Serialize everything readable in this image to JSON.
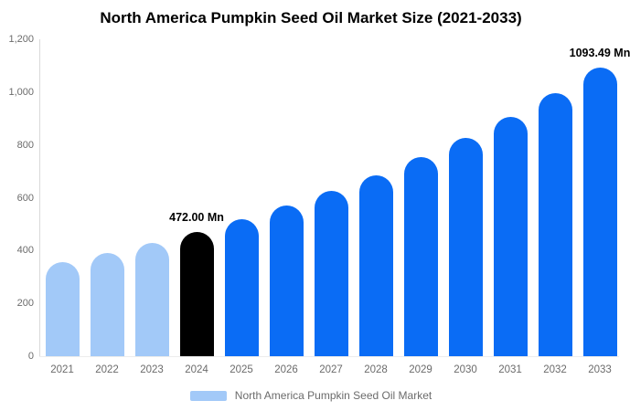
{
  "chart_data": {
    "type": "bar",
    "title": "North America Pumpkin Seed Oil Market Size (2021-2033)",
    "unit": "Mn",
    "categories": [
      "2021",
      "2022",
      "2023",
      "2024",
      "2025",
      "2026",
      "2027",
      "2028",
      "2029",
      "2030",
      "2031",
      "2032",
      "2033"
    ],
    "values": [
      356.7,
      391.6,
      429.9,
      472.0,
      518.2,
      568.9,
      624.6,
      685.8,
      752.9,
      826.6,
      907.5,
      996.4,
      1093.49
    ],
    "bar_colors": [
      "#A2C9F8",
      "#A2C9F8",
      "#A2C9F8",
      "#000000",
      "#0A6CF5",
      "#0A6CF5",
      "#0A6CF5",
      "#0A6CF5",
      "#0A6CF5",
      "#0A6CF5",
      "#0A6CF5",
      "#0A6CF5",
      "#0A6CF5"
    ],
    "annotations": [
      {
        "index": 3,
        "text": "472.00 Mn"
      },
      {
        "index": 12,
        "text": "1093.49 Mn"
      }
    ],
    "xlabel": "",
    "ylabel": "",
    "ylim": [
      0,
      1200
    ],
    "yticks": [
      {
        "value": 0,
        "label": "0"
      },
      {
        "value": 200,
        "label": "200"
      },
      {
        "value": 400,
        "label": "400"
      },
      {
        "value": 600,
        "label": "600"
      },
      {
        "value": 800,
        "label": "800"
      },
      {
        "value": 1000,
        "label": "1,000"
      },
      {
        "value": 1200,
        "label": "1,200"
      }
    ],
    "grid": false,
    "legend_position": "bottom"
  },
  "legend": {
    "label": "North America Pumpkin Seed Oil Market",
    "swatch_color": "#A2C9F8"
  },
  "colors": {
    "historical_bar": "#A2C9F8",
    "base_year_bar": "#000000",
    "forecast_bar": "#0A6CF5",
    "axis_line": "#d9d9d9",
    "tick_text": "#6b6b6b",
    "title_text": "#000000",
    "background": "#ffffff"
  }
}
